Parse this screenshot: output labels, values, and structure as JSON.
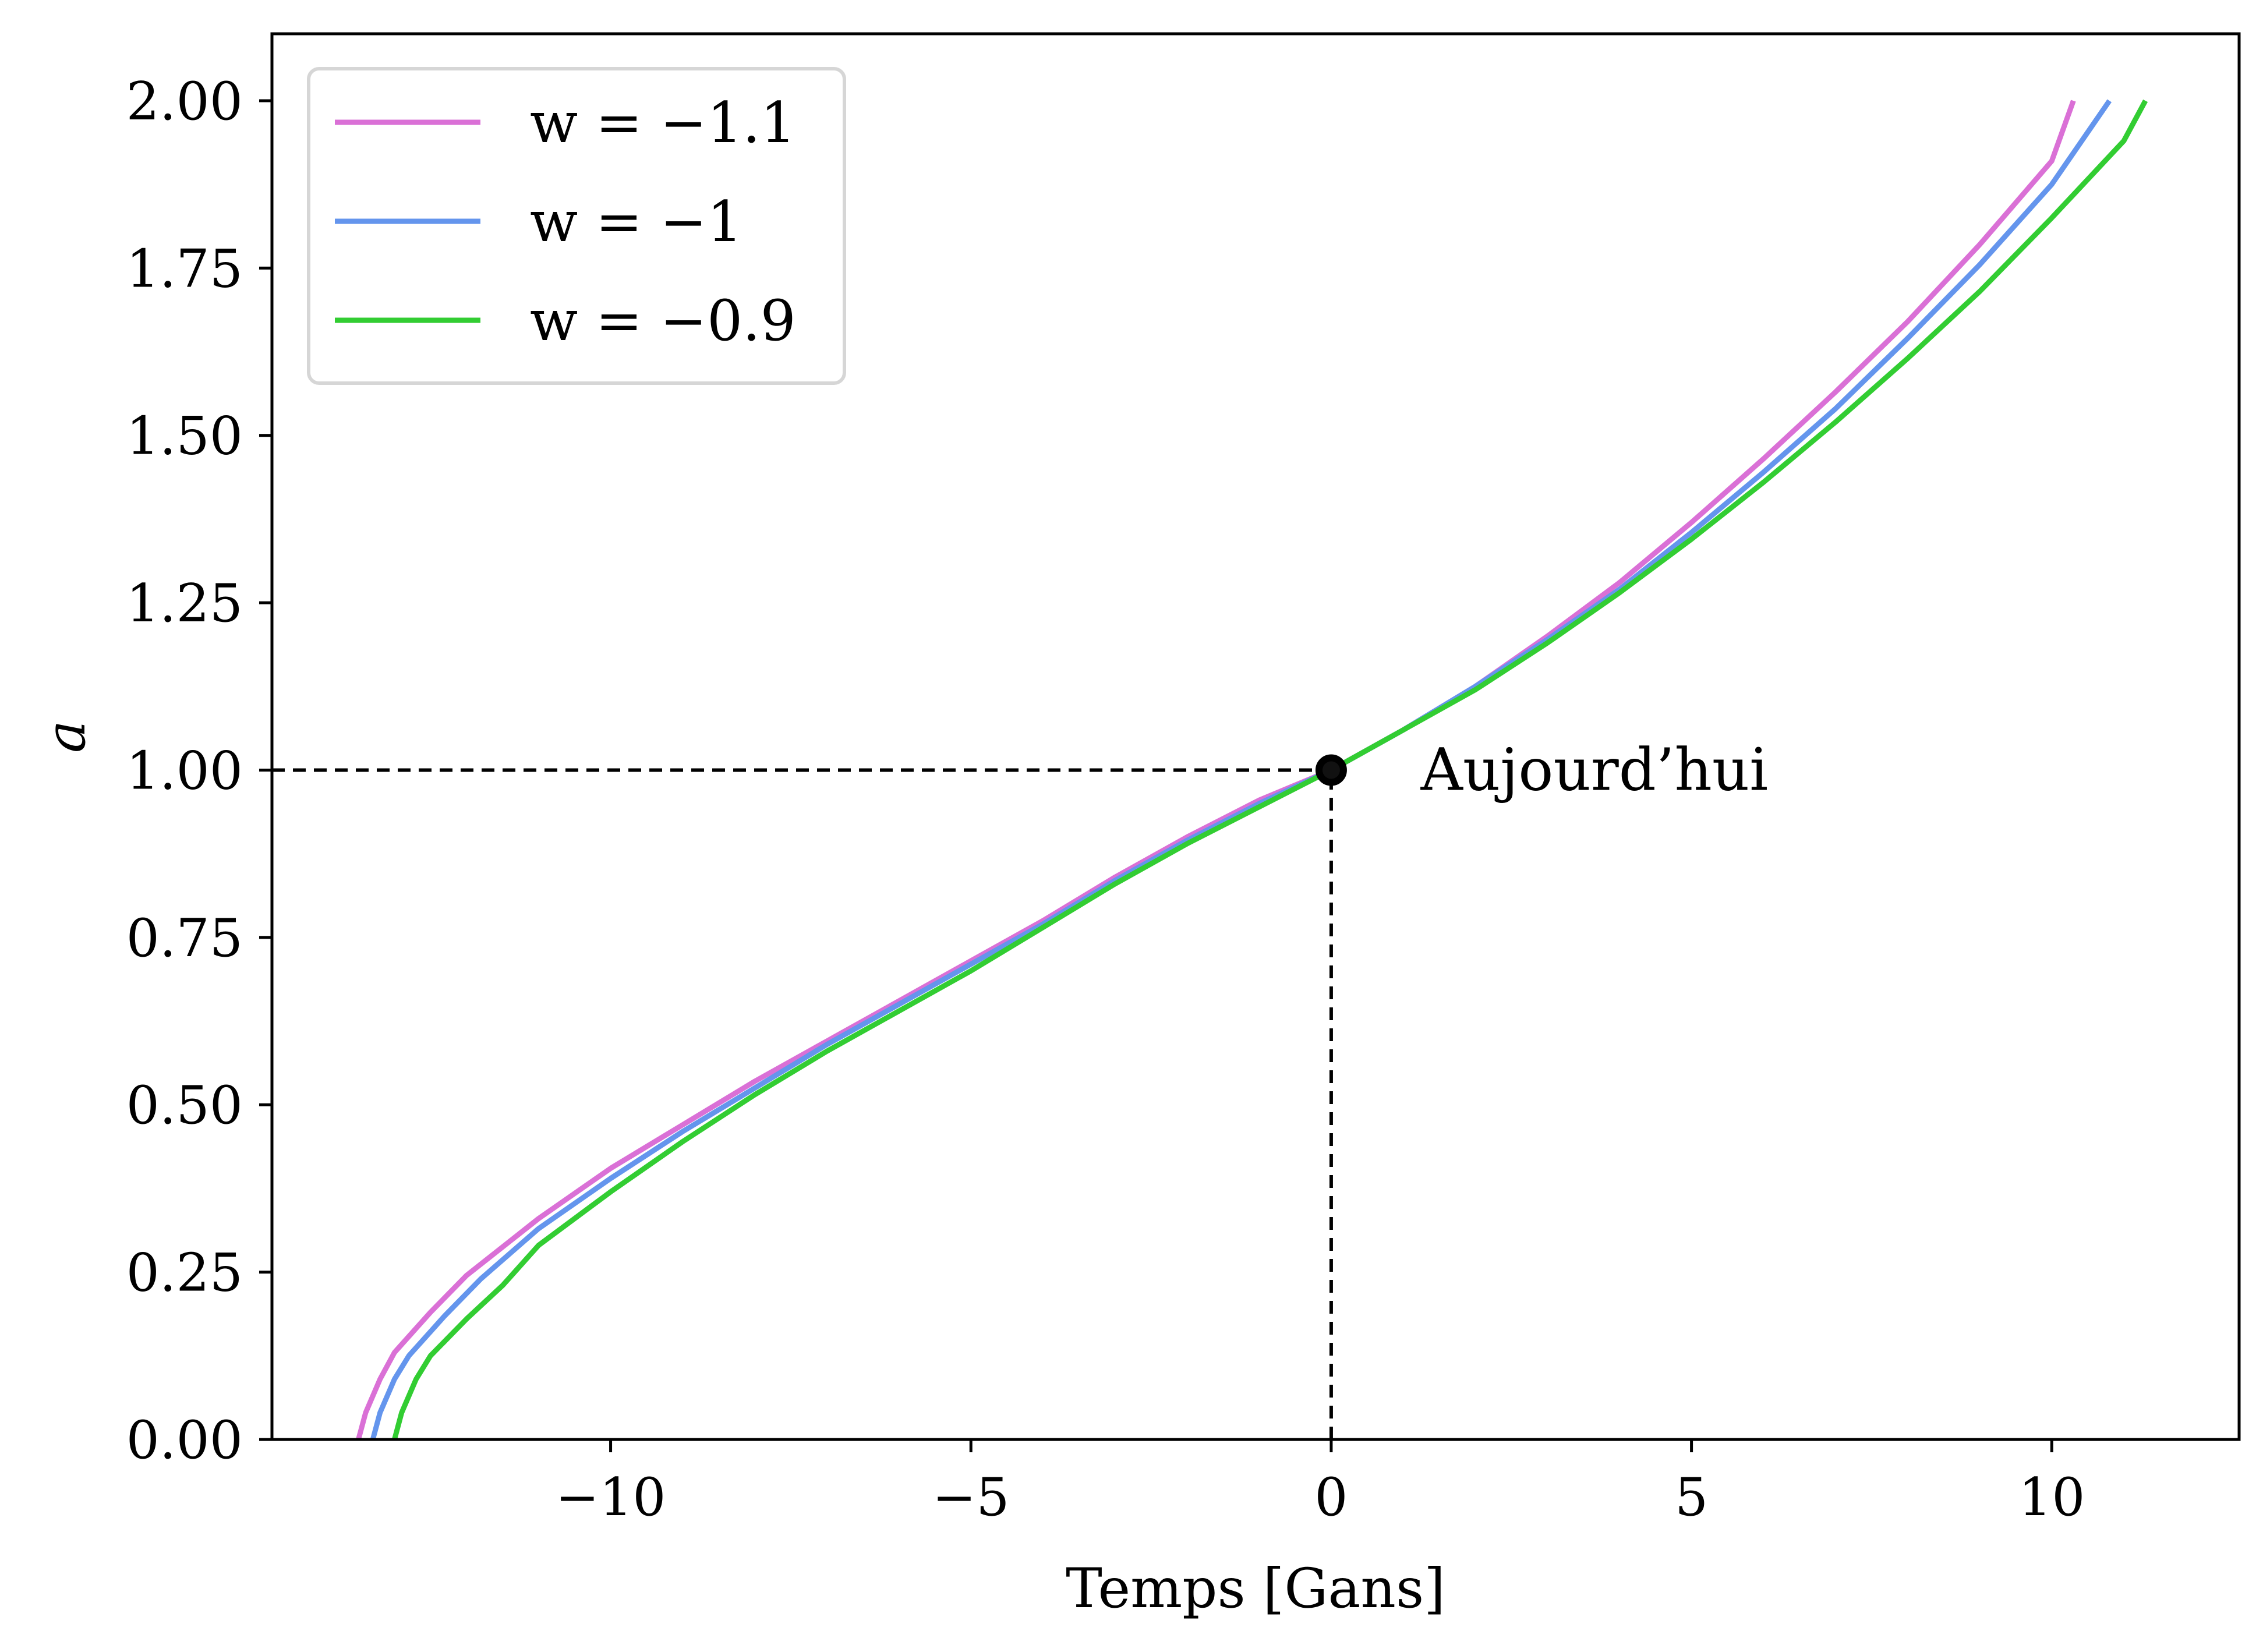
{
  "chart_data": {
    "type": "line",
    "title": "",
    "xlabel": "Temps [Gans]",
    "ylabel": "a",
    "xlim": [
      -14.7,
      12.6
    ],
    "ylim": [
      0.0,
      2.1
    ],
    "xticks": [
      -10,
      -5,
      0,
      5,
      10
    ],
    "xtick_labels": [
      "−10",
      "−5",
      "0",
      "5",
      "10"
    ],
    "yticks": [
      0.0,
      0.25,
      0.5,
      0.75,
      1.0,
      1.25,
      1.5,
      1.75,
      2.0
    ],
    "ytick_labels": [
      "0.00",
      "0.25",
      "0.50",
      "0.75",
      "1.00",
      "1.25",
      "1.50",
      "1.75",
      "2.00"
    ],
    "grid": false,
    "legend_position": "top-left",
    "series": [
      {
        "name": "w = −1.1",
        "color": "#DA70D6",
        "points": [
          [
            -13.5,
            0.0
          ],
          [
            -13.4,
            0.04
          ],
          [
            -13.2,
            0.09
          ],
          [
            -13.0,
            0.13
          ],
          [
            -12.5,
            0.19
          ],
          [
            -12.0,
            0.245
          ],
          [
            -11.0,
            0.33
          ],
          [
            -10.0,
            0.405
          ],
          [
            -9.0,
            0.47
          ],
          [
            -8.0,
            0.535
          ],
          [
            -7.0,
            0.595
          ],
          [
            -6.0,
            0.655
          ],
          [
            -5.0,
            0.715
          ],
          [
            -4.0,
            0.775
          ],
          [
            -3.0,
            0.84
          ],
          [
            -2.0,
            0.9
          ],
          [
            -1.0,
            0.955
          ],
          [
            0.0,
            1.0
          ],
          [
            1.0,
            1.06
          ],
          [
            2.0,
            1.125
          ],
          [
            3.0,
            1.2
          ],
          [
            4.0,
            1.28
          ],
          [
            5.0,
            1.37
          ],
          [
            6.0,
            1.465
          ],
          [
            7.0,
            1.565
          ],
          [
            8.0,
            1.67
          ],
          [
            9.0,
            1.785
          ],
          [
            10.0,
            1.91
          ],
          [
            10.3,
            2.0
          ]
        ]
      },
      {
        "name": "w = −1",
        "color": "#6495ED",
        "points": [
          [
            -13.3,
            0.0
          ],
          [
            -13.2,
            0.04
          ],
          [
            -13.0,
            0.09
          ],
          [
            -12.8,
            0.125
          ],
          [
            -12.3,
            0.185
          ],
          [
            -11.8,
            0.24
          ],
          [
            -11.0,
            0.315
          ],
          [
            -10.0,
            0.39
          ],
          [
            -9.0,
            0.46
          ],
          [
            -8.0,
            0.525
          ],
          [
            -7.0,
            0.59
          ],
          [
            -6.0,
            0.65
          ],
          [
            -5.0,
            0.71
          ],
          [
            -4.0,
            0.77
          ],
          [
            -3.0,
            0.835
          ],
          [
            -2.0,
            0.895
          ],
          [
            -1.0,
            0.95
          ],
          [
            0.0,
            1.0
          ],
          [
            1.0,
            1.06
          ],
          [
            2.0,
            1.125
          ],
          [
            3.0,
            1.195
          ],
          [
            4.0,
            1.27
          ],
          [
            5.0,
            1.355
          ],
          [
            6.0,
            1.445
          ],
          [
            7.0,
            1.54
          ],
          [
            8.0,
            1.645
          ],
          [
            9.0,
            1.755
          ],
          [
            10.0,
            1.875
          ],
          [
            10.8,
            2.0
          ]
        ]
      },
      {
        "name": "w = −0.9",
        "color": "#32CD32",
        "points": [
          [
            -13.0,
            0.0
          ],
          [
            -12.9,
            0.04
          ],
          [
            -12.7,
            0.09
          ],
          [
            -12.5,
            0.125
          ],
          [
            -12.0,
            0.18
          ],
          [
            -11.5,
            0.23
          ],
          [
            -11.0,
            0.29
          ],
          [
            -10.0,
            0.37
          ],
          [
            -9.0,
            0.445
          ],
          [
            -8.0,
            0.515
          ],
          [
            -7.0,
            0.58
          ],
          [
            -6.0,
            0.64
          ],
          [
            -5.0,
            0.7
          ],
          [
            -4.0,
            0.765
          ],
          [
            -3.0,
            0.83
          ],
          [
            -2.0,
            0.89
          ],
          [
            -1.0,
            0.945
          ],
          [
            0.0,
            1.0
          ],
          [
            1.0,
            1.06
          ],
          [
            2.0,
            1.12
          ],
          [
            3.0,
            1.19
          ],
          [
            4.0,
            1.265
          ],
          [
            5.0,
            1.345
          ],
          [
            6.0,
            1.43
          ],
          [
            7.0,
            1.52
          ],
          [
            8.0,
            1.615
          ],
          [
            9.0,
            1.715
          ],
          [
            10.0,
            1.825
          ],
          [
            11.0,
            1.94
          ],
          [
            11.3,
            2.0
          ]
        ]
      }
    ],
    "guide_lines": [
      {
        "x_from": -14.7,
        "x_to": 0.0,
        "y": 1.0
      },
      {
        "x": 0.0,
        "y_from": 0.0,
        "y_to": 1.0
      }
    ],
    "marker": {
      "x": 0.0,
      "y": 1.0,
      "color": "#000000"
    },
    "annotation": {
      "text": "Aujourd’hui",
      "x": 1.0,
      "y": 1.0
    }
  }
}
